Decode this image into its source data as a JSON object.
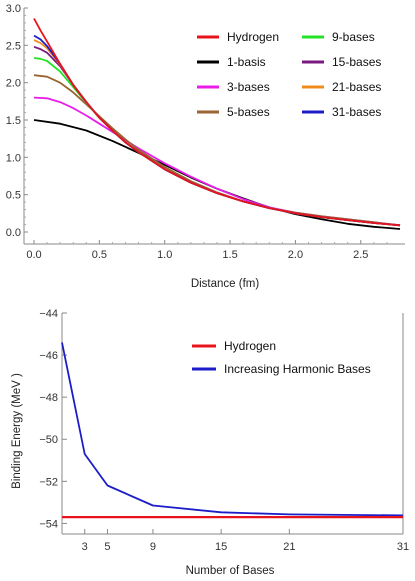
{
  "chart_data": [
    {
      "type": "line",
      "title": "",
      "xlabel": "Distance (fm)",
      "ylabel": "",
      "xlim": [
        0,
        2.8
      ],
      "ylim": [
        0,
        3
      ],
      "xticks": [
        "0.0",
        "0.5",
        "1.0",
        "1.5",
        "2.0",
        "2.5"
      ],
      "yticks": [
        "0.0",
        "0.5",
        "1.0",
        "1.5",
        "2.0",
        "2.5",
        "3.0"
      ],
      "legend_position": "top-right",
      "series": [
        {
          "name": "Hydrogen",
          "color": "#e8141c",
          "x": [
            0,
            0.05,
            0.1,
            0.2,
            0.3,
            0.4,
            0.5,
            0.6,
            0.7,
            0.8,
            1.0,
            1.2,
            1.4,
            1.6,
            1.8,
            2.0,
            2.2,
            2.4,
            2.6,
            2.8
          ],
          "y": [
            2.86,
            2.7,
            2.55,
            2.25,
            1.97,
            1.74,
            1.53,
            1.36,
            1.2,
            1.07,
            0.84,
            0.66,
            0.52,
            0.41,
            0.32,
            0.25,
            0.2,
            0.16,
            0.12,
            0.09
          ]
        },
        {
          "name": "1-basis",
          "color": "#000000",
          "x": [
            0,
            0.2,
            0.4,
            0.6,
            0.8,
            1.0,
            1.2,
            1.4,
            1.6,
            1.8,
            2.0,
            2.2,
            2.4,
            2.6,
            2.8
          ],
          "y": [
            1.5,
            1.45,
            1.36,
            1.22,
            1.06,
            0.9,
            0.73,
            0.58,
            0.45,
            0.33,
            0.24,
            0.17,
            0.11,
            0.07,
            0.04
          ]
        },
        {
          "name": "3-bases",
          "color": "#e81ee8",
          "x": [
            0,
            0.1,
            0.2,
            0.3,
            0.4,
            0.5,
            0.6,
            0.7,
            0.8,
            1.0,
            1.2,
            1.4,
            1.6,
            1.8,
            2.0,
            2.2,
            2.4,
            2.6,
            2.8
          ],
          "y": [
            1.8,
            1.79,
            1.74,
            1.66,
            1.56,
            1.45,
            1.34,
            1.23,
            1.12,
            0.92,
            0.74,
            0.58,
            0.44,
            0.33,
            0.26,
            0.21,
            0.17,
            0.13,
            0.09
          ]
        },
        {
          "name": "5-bases",
          "color": "#9a6330",
          "x": [
            0,
            0.1,
            0.2,
            0.3,
            0.4,
            0.5,
            0.6,
            0.7,
            0.8,
            1.0,
            1.2,
            1.4,
            1.6,
            1.8,
            2.0,
            2.2,
            2.4,
            2.6,
            2.8
          ],
          "y": [
            2.1,
            2.08,
            2.0,
            1.87,
            1.71,
            1.55,
            1.39,
            1.24,
            1.1,
            0.87,
            0.68,
            0.53,
            0.41,
            0.32,
            0.26,
            0.21,
            0.17,
            0.13,
            0.09
          ]
        },
        {
          "name": "9-bases",
          "color": "#26e226",
          "x": [
            0,
            0.05,
            0.1,
            0.2,
            0.3,
            0.4,
            0.5,
            0.6,
            0.7,
            0.8,
            1.0,
            1.2,
            1.4,
            1.6,
            1.8,
            2.0,
            2.2,
            2.4,
            2.6,
            2.8
          ],
          "y": [
            2.33,
            2.32,
            2.29,
            2.15,
            1.94,
            1.73,
            1.53,
            1.36,
            1.2,
            1.07,
            0.84,
            0.66,
            0.52,
            0.41,
            0.32,
            0.25,
            0.2,
            0.16,
            0.12,
            0.09
          ]
        },
        {
          "name": "15-bases",
          "color": "#7a1a80",
          "x": [
            0,
            0.05,
            0.1,
            0.2,
            0.3,
            0.4,
            0.5,
            0.6,
            0.7,
            0.8,
            1.0,
            1.2,
            1.4,
            1.6,
            1.8,
            2.0,
            2.2,
            2.4,
            2.6,
            2.8
          ],
          "y": [
            2.48,
            2.45,
            2.4,
            2.22,
            1.97,
            1.74,
            1.53,
            1.36,
            1.2,
            1.07,
            0.84,
            0.66,
            0.52,
            0.41,
            0.32,
            0.25,
            0.2,
            0.16,
            0.12,
            0.09
          ]
        },
        {
          "name": "21-bases",
          "color": "#f08c1e",
          "x": [
            0,
            0.05,
            0.1,
            0.2,
            0.3,
            0.4,
            0.5,
            0.6,
            0.7,
            0.8,
            1.0,
            1.2,
            1.4,
            1.6,
            1.8,
            2.0,
            2.2,
            2.4,
            2.6,
            2.8
          ],
          "y": [
            2.57,
            2.53,
            2.46,
            2.24,
            1.97,
            1.74,
            1.53,
            1.36,
            1.2,
            1.07,
            0.84,
            0.66,
            0.52,
            0.41,
            0.32,
            0.25,
            0.2,
            0.16,
            0.12,
            0.09
          ]
        },
        {
          "name": "31-bases",
          "color": "#1c1cc8",
          "x": [
            0,
            0.05,
            0.1,
            0.2,
            0.3,
            0.4,
            0.5,
            0.6,
            0.7,
            0.8,
            1.0,
            1.2,
            1.4,
            1.6,
            1.8,
            2.0,
            2.2,
            2.4,
            2.6,
            2.8
          ],
          "y": [
            2.63,
            2.58,
            2.49,
            2.25,
            1.97,
            1.74,
            1.53,
            1.36,
            1.2,
            1.07,
            0.84,
            0.66,
            0.52,
            0.41,
            0.32,
            0.25,
            0.2,
            0.16,
            0.12,
            0.09
          ]
        }
      ]
    },
    {
      "type": "line",
      "title": "",
      "xlabel": "Number of Bases",
      "ylabel": "Binding Energy (MeV )",
      "xlim": [
        1,
        31
      ],
      "ylim": [
        -54.2,
        -44
      ],
      "xticks": [
        "3",
        "5",
        "9",
        "15",
        "21",
        "31"
      ],
      "yticks": [
        "-44",
        "-46",
        "-48",
        "-50",
        "-52",
        "-54"
      ],
      "legend_position": "top-right",
      "series": [
        {
          "name": "Hydrogen",
          "color": "#e8141c",
          "x": [
            1,
            31
          ],
          "y": [
            -53.7,
            -53.7
          ]
        },
        {
          "name": "Increasing Harmonic Bases",
          "color": "#1c1cc8",
          "x": [
            1,
            3,
            5,
            9,
            15,
            21,
            31
          ],
          "y": [
            -45.4,
            -50.7,
            -52.2,
            -53.15,
            -53.47,
            -53.57,
            -53.62
          ]
        }
      ]
    }
  ]
}
